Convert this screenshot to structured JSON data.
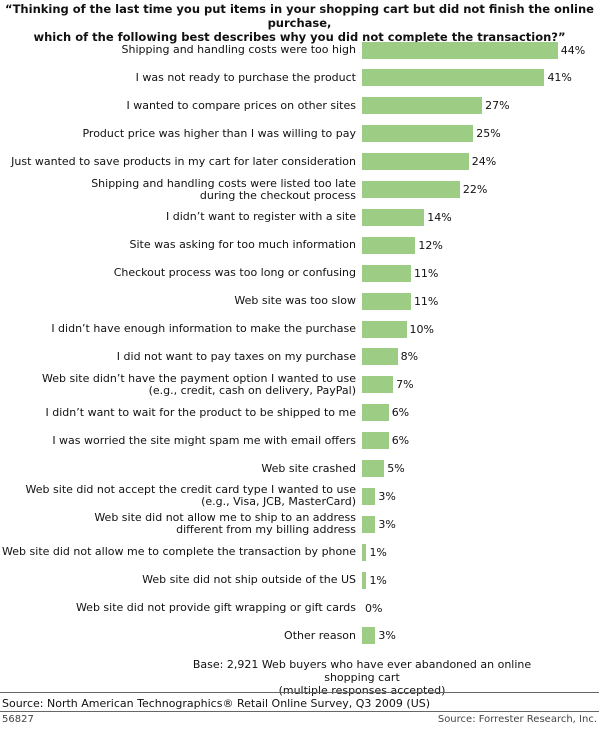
{
  "chart_data": {
    "type": "bar",
    "orientation": "horizontal",
    "title": "“Thinking of the last time you put items in your shopping cart but did not finish the online purchase,\nwhich of the following best describes why you did not complete the transaction?”",
    "categories": [
      "Shipping and handling costs were too high",
      "I was not ready to purchase the product",
      "I wanted to compare prices on other sites",
      "Product price was higher than I was willing to pay",
      "Just wanted to save products in my cart for later consideration",
      "Shipping and handling costs were listed too late\nduring the checkout process",
      "I didn’t want to register with a site",
      "Site was asking for too much information",
      "Checkout process was too long or confusing",
      "Web site was too slow",
      "I didn’t have enough information to make the purchase",
      "I did not want to pay taxes on my purchase",
      "Web site didn’t have the payment option I wanted to use\n(e.g., credit, cash on delivery, PayPal)",
      "I didn’t want to wait for the product to be shipped to me",
      "I was worried the site might spam me with email offers",
      "Web site crashed",
      "Web site did not accept the credit card type I wanted to use\n(e.g., Visa, JCB, MasterCard)",
      "Web site did not allow me to ship to an address\ndifferent from my billing address",
      "Web site did not allow me to complete the transaction by phone",
      "Web site did not ship outside of the US",
      "Web site did not provide gift wrapping or gift cards",
      "Other reason"
    ],
    "values": [
      44,
      41,
      27,
      25,
      24,
      22,
      14,
      12,
      11,
      11,
      10,
      8,
      7,
      6,
      6,
      5,
      3,
      3,
      1,
      1,
      0,
      3
    ],
    "value_labels": [
      "44%",
      "41%",
      "27%",
      "25%",
      "24%",
      "22%",
      "14%",
      "12%",
      "11%",
      "11%",
      "10%",
      "8%",
      "7%",
      "6%",
      "6%",
      "5%",
      "3%",
      "3%",
      "1%",
      "1%",
      "0%",
      "3%"
    ],
    "color": "#9dcd85",
    "note": "Base: 2,921 Web buyers who have ever abandoned an online shopping cart\n(multiple responses accepted)",
    "source": "Source: North American Technographics® Retail Online Survey, Q3 2009 (US)",
    "figure_id": "56827",
    "credit": "Source: Forrester Research, Inc."
  }
}
